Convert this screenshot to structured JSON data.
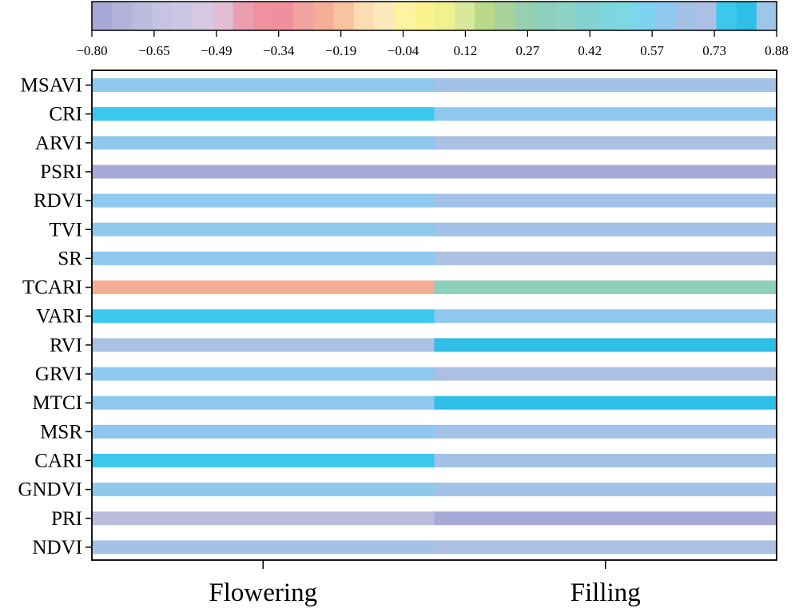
{
  "chart_data": {
    "type": "heatmap",
    "rows": [
      "MSAVI",
      "CRI",
      "ARVI",
      "PSRI",
      "RDVI",
      "TVI",
      "SR",
      "TCARI",
      "VARI",
      "RVI",
      "GRVI",
      "MTCI",
      "MSR",
      "CARI",
      "GNDVI",
      "PRI",
      "NDVI"
    ],
    "columns": [
      "Flowering",
      "Filling"
    ],
    "values": [
      [
        0.63,
        0.67
      ],
      [
        0.75,
        0.63
      ],
      [
        0.63,
        0.72
      ],
      [
        -0.78,
        -0.82
      ],
      [
        0.62,
        0.66
      ],
      [
        0.63,
        0.67
      ],
      [
        0.62,
        0.73
      ],
      [
        -0.23,
        0.32
      ],
      [
        0.75,
        0.63
      ],
      [
        0.71,
        0.8
      ],
      [
        0.63,
        0.72
      ],
      [
        0.62,
        0.8
      ],
      [
        0.61,
        0.67
      ],
      [
        0.75,
        0.64
      ],
      [
        0.62,
        0.67
      ],
      [
        -0.68,
        -0.81
      ],
      [
        0.64,
        0.72
      ]
    ],
    "colorbar": {
      "position": "top",
      "range": [
        -0.8,
        0.88
      ],
      "tick_labels": [
        "−0.80",
        "−0.65",
        "−0.49",
        "−0.34",
        "−0.19",
        "−0.04",
        "0.12",
        "0.27",
        "0.42",
        "0.57",
        "0.73",
        "0.88"
      ],
      "colors": [
        "#a8a8d6",
        "#b3b2da",
        "#bcbbde",
        "#c5c4e2",
        "#cec7e4",
        "#d7c8e2",
        "#e2bed6",
        "#ea9fb0",
        "#f0919f",
        "#f1909c",
        "#f3a2a2",
        "#f6ad96",
        "#f8c49f",
        "#fbdcb3",
        "#fde9bc",
        "#fdf3a0",
        "#fbf48e",
        "#eef291",
        "#d8e99a",
        "#b9d889",
        "#a8d19c",
        "#97cfaf",
        "#8ccfba",
        "#8dd3c4",
        "#84d2cf",
        "#7dd4dd",
        "#7dd8e6",
        "#7fd3f0",
        "#8fc8ef",
        "#a2c2e8",
        "#abc0e3",
        "#3cc7ed",
        "#2ebfe6",
        "#9fc6e6"
      ]
    },
    "grid": false
  }
}
